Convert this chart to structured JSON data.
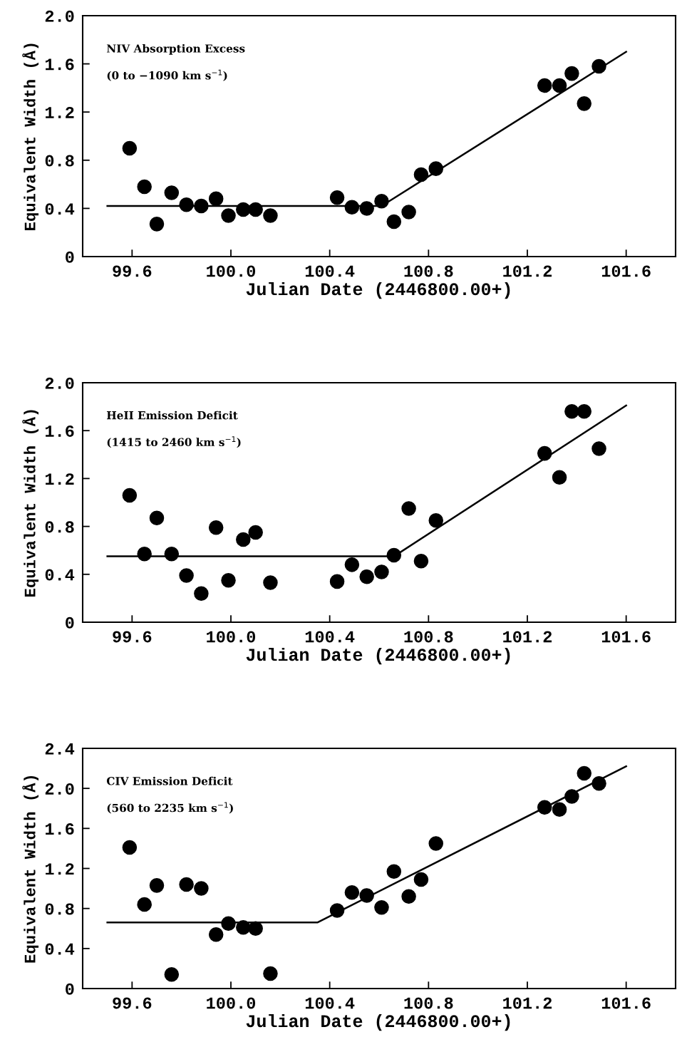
{
  "chart_data": [
    {
      "type": "scatter",
      "xlabel": "Julian Date (2446800.00+)",
      "ylabel": "Equivalent Width (Å)",
      "xlim": [
        99.4,
        101.8
      ],
      "ylim": [
        0,
        2.0
      ],
      "xticks": [
        {
          "value": 99.6,
          "label": "99.6"
        },
        {
          "value": 100.0,
          "label": "100.0"
        },
        {
          "value": 100.4,
          "label": "100.4"
        },
        {
          "value": 100.8,
          "label": "100.8"
        },
        {
          "value": 101.2,
          "label": "101.2"
        },
        {
          "value": 101.6,
          "label": "101.6"
        }
      ],
      "yticks": [
        0,
        {
          "value": 0.4,
          "label": "0.4"
        },
        {
          "value": 0.8,
          "label": "0.8"
        },
        {
          "value": 1.2,
          "label": "1.2"
        },
        {
          "value": 1.6,
          "label": "1.6"
        },
        {
          "value": 2.0,
          "label": "2.0"
        }
      ],
      "grid": false,
      "annotations": [
        "NIV Absorption Excess",
        "(0 to −1090 km s$^{−1}$)"
      ],
      "series": [
        {
          "type": "scatter",
          "marker": "circle",
          "color": "#000000",
          "x": [
            99.59,
            99.65,
            99.7,
            99.76,
            99.82,
            99.88,
            99.94,
            99.99,
            100.05,
            100.1,
            100.16,
            100.43,
            100.49,
            100.55,
            100.61,
            100.66,
            100.72,
            100.77,
            100.83,
            101.27,
            101.33,
            101.38,
            101.43,
            101.49
          ],
          "values": [
            0.9,
            0.58,
            0.27,
            0.53,
            0.43,
            0.42,
            0.48,
            0.34,
            0.39,
            0.39,
            0.34,
            0.49,
            0.41,
            0.4,
            0.46,
            0.29,
            0.37,
            0.68,
            0.73,
            1.42,
            1.42,
            1.52,
            1.27,
            1.58
          ]
        },
        {
          "type": "line",
          "marker": "none",
          "color": "#000000",
          "x": [
            99.5,
            100.61,
            101.6
          ],
          "values": [
            0.42,
            0.42,
            1.7
          ]
        }
      ]
    },
    {
      "type": "scatter",
      "xlabel": "Julian Date (2446800.00+)",
      "ylabel": "Equivalent Width (Å)",
      "xlim": [
        99.4,
        101.8
      ],
      "ylim": [
        0,
        2.0
      ],
      "xticks": [
        {
          "value": 99.6,
          "label": "99.6"
        },
        {
          "value": 100.0,
          "label": "100.0"
        },
        {
          "value": 100.4,
          "label": "100.4"
        },
        {
          "value": 100.8,
          "label": "100.8"
        },
        {
          "value": 101.2,
          "label": "101.2"
        },
        {
          "value": 101.6,
          "label": "101.6"
        }
      ],
      "yticks": [
        0,
        {
          "value": 0.4,
          "label": "0.4"
        },
        {
          "value": 0.8,
          "label": "0.8"
        },
        {
          "value": 1.2,
          "label": "1.2"
        },
        {
          "value": 1.6,
          "label": "1.6"
        },
        {
          "value": 2.0,
          "label": "2.0"
        }
      ],
      "grid": false,
      "annotations": [
        "HeII Emission Deficit",
        "(1415 to 2460 km s$^{−1}$)"
      ],
      "series": [
        {
          "type": "scatter",
          "marker": "circle",
          "color": "#000000",
          "x": [
            99.59,
            99.65,
            99.7,
            99.76,
            99.82,
            99.88,
            99.94,
            99.99,
            100.05,
            100.1,
            100.16,
            100.43,
            100.49,
            100.55,
            100.61,
            100.66,
            100.72,
            100.77,
            100.83,
            101.27,
            101.33,
            101.38,
            101.43,
            101.49
          ],
          "values": [
            1.06,
            0.57,
            0.87,
            0.57,
            0.39,
            0.24,
            0.79,
            0.35,
            0.69,
            0.75,
            0.33,
            0.34,
            0.48,
            0.38,
            0.42,
            0.56,
            0.95,
            0.51,
            0.85,
            1.41,
            1.21,
            1.76,
            1.76,
            1.45
          ]
        },
        {
          "type": "line",
          "marker": "none",
          "color": "#000000",
          "x": [
            99.5,
            100.66,
            101.6
          ],
          "values": [
            0.55,
            0.55,
            1.81
          ]
        }
      ]
    },
    {
      "type": "scatter",
      "xlabel": "Julian Date (2446800.00+)",
      "ylabel": "Equivalent Width (Å)",
      "xlim": [
        99.4,
        101.8
      ],
      "ylim": [
        0,
        2.4
      ],
      "xticks": [
        {
          "value": 99.6,
          "label": "99.6"
        },
        {
          "value": 100.0,
          "label": "100.0"
        },
        {
          "value": 100.4,
          "label": "100.4"
        },
        {
          "value": 100.8,
          "label": "100.8"
        },
        {
          "value": 101.2,
          "label": "101.2"
        },
        {
          "value": 101.6,
          "label": "101.6"
        }
      ],
      "yticks": [
        0,
        {
          "value": 0.4,
          "label": "0.4"
        },
        {
          "value": 0.8,
          "label": "0.8"
        },
        {
          "value": 1.2,
          "label": "1.2"
        },
        {
          "value": 1.6,
          "label": "1.6"
        },
        {
          "value": 2.0,
          "label": "2.0"
        },
        {
          "value": 2.4,
          "label": "2.4"
        }
      ],
      "grid": false,
      "annotations": [
        "CIV Emission Deficit",
        "(560 to 2235 km s$^{−1}$)"
      ],
      "series": [
        {
          "type": "scatter",
          "marker": "circle",
          "color": "#000000",
          "x": [
            99.59,
            99.65,
            99.7,
            99.76,
            99.82,
            99.88,
            99.94,
            99.99,
            100.05,
            100.1,
            100.16,
            100.43,
            100.49,
            100.55,
            100.61,
            100.66,
            100.72,
            100.77,
            100.83,
            101.27,
            101.33,
            101.38,
            101.43,
            101.49
          ],
          "values": [
            1.41,
            0.84,
            1.03,
            0.14,
            1.04,
            1.0,
            0.54,
            0.65,
            0.61,
            0.6,
            0.15,
            0.78,
            0.96,
            0.93,
            0.81,
            1.17,
            0.92,
            1.09,
            1.45,
            1.81,
            1.79,
            1.92,
            2.15,
            2.05
          ]
        },
        {
          "type": "line",
          "marker": "none",
          "color": "#000000",
          "x": [
            99.5,
            100.35,
            101.6
          ],
          "values": [
            0.66,
            0.66,
            2.22
          ]
        }
      ]
    }
  ]
}
